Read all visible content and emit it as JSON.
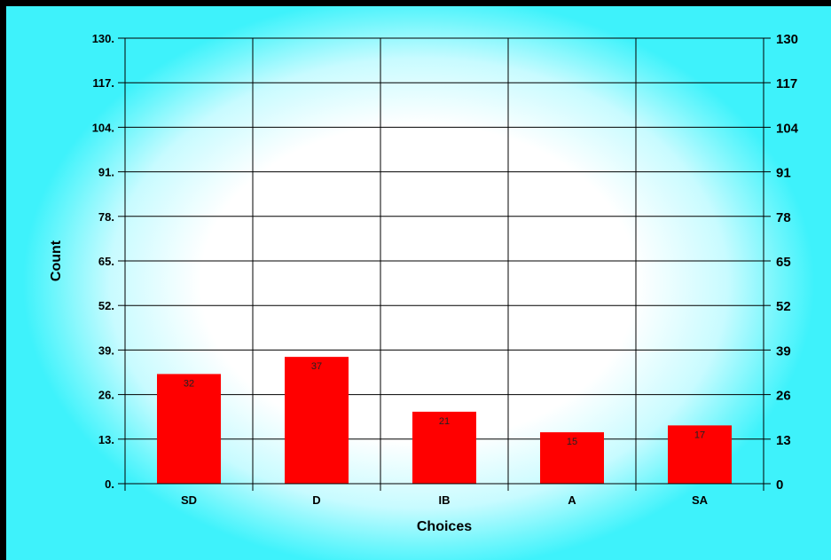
{
  "chart_data": {
    "type": "bar",
    "categories": [
      "SD",
      "D",
      "IB",
      "A",
      "SA"
    ],
    "values": [
      32,
      37,
      21,
      15,
      17
    ],
    "data_labels": [
      "32",
      "37",
      "21",
      "15",
      "17"
    ],
    "title": "",
    "xlabel": "Choices",
    "ylabel": "Count",
    "ylim": [
      0,
      130
    ],
    "y_ticks": [
      0,
      13,
      26,
      39,
      52,
      65,
      78,
      91,
      104,
      117,
      130
    ],
    "y_tick_labels_left": [
      "0.",
      "13.",
      "26.",
      "39.",
      "52.",
      "65.",
      "78.",
      "91.",
      "104.",
      "117.",
      "130."
    ],
    "y_tick_labels_right": [
      "0",
      "13",
      "26",
      "39",
      "52",
      "65",
      "78",
      "91",
      "104",
      "117",
      "130"
    ],
    "grid": true,
    "bar_color": "#ff0000",
    "background_colors": [
      "#ffffff",
      "#3ef2fb"
    ]
  }
}
